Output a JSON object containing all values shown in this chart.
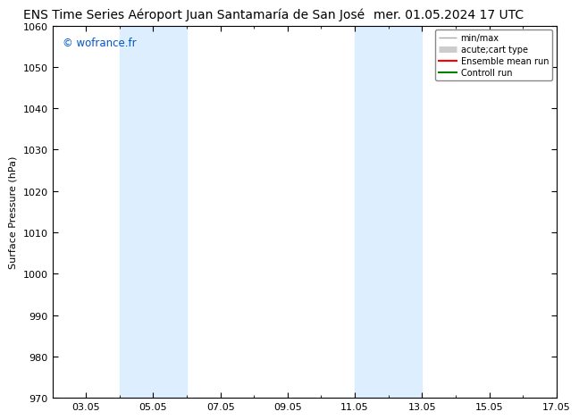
{
  "title_left": "ENS Time Series Aéroport Juan Santamaría de San José",
  "title_right": "mer. 01.05.2024 17 UTC",
  "ylabel": "Surface Pressure (hPa)",
  "ylim": [
    970,
    1060
  ],
  "yticks": [
    970,
    980,
    990,
    1000,
    1010,
    1020,
    1030,
    1040,
    1050,
    1060
  ],
  "xlim": [
    2,
    16
  ],
  "xtick_labels": [
    "03.05",
    "05.05",
    "07.05",
    "09.05",
    "11.05",
    "13.05",
    "15.05",
    "17.05"
  ],
  "xtick_positions": [
    3,
    5,
    7,
    9,
    11,
    13,
    15,
    17
  ],
  "shade_bands": [
    {
      "xmin": 4.0,
      "xmax": 6.0
    },
    {
      "xmin": 11.0,
      "xmax": 13.0
    }
  ],
  "shade_color": "#ddeeff",
  "background_color": "#ffffff",
  "watermark": "© wofrance.fr",
  "watermark_color": "#0055cc",
  "legend_entries": [
    {
      "label": "min/max",
      "color": "#aaaaaa",
      "lw": 1.0
    },
    {
      "label": "acute;cart type",
      "color": "#cccccc",
      "lw": 5
    },
    {
      "label": "Ensemble mean run",
      "color": "#ff0000",
      "lw": 1.5
    },
    {
      "label": "Controll run",
      "color": "#008000",
      "lw": 1.5
    }
  ],
  "title_fontsize": 10,
  "tick_fontsize": 8,
  "ylabel_fontsize": 8,
  "spine_color": "#000000"
}
